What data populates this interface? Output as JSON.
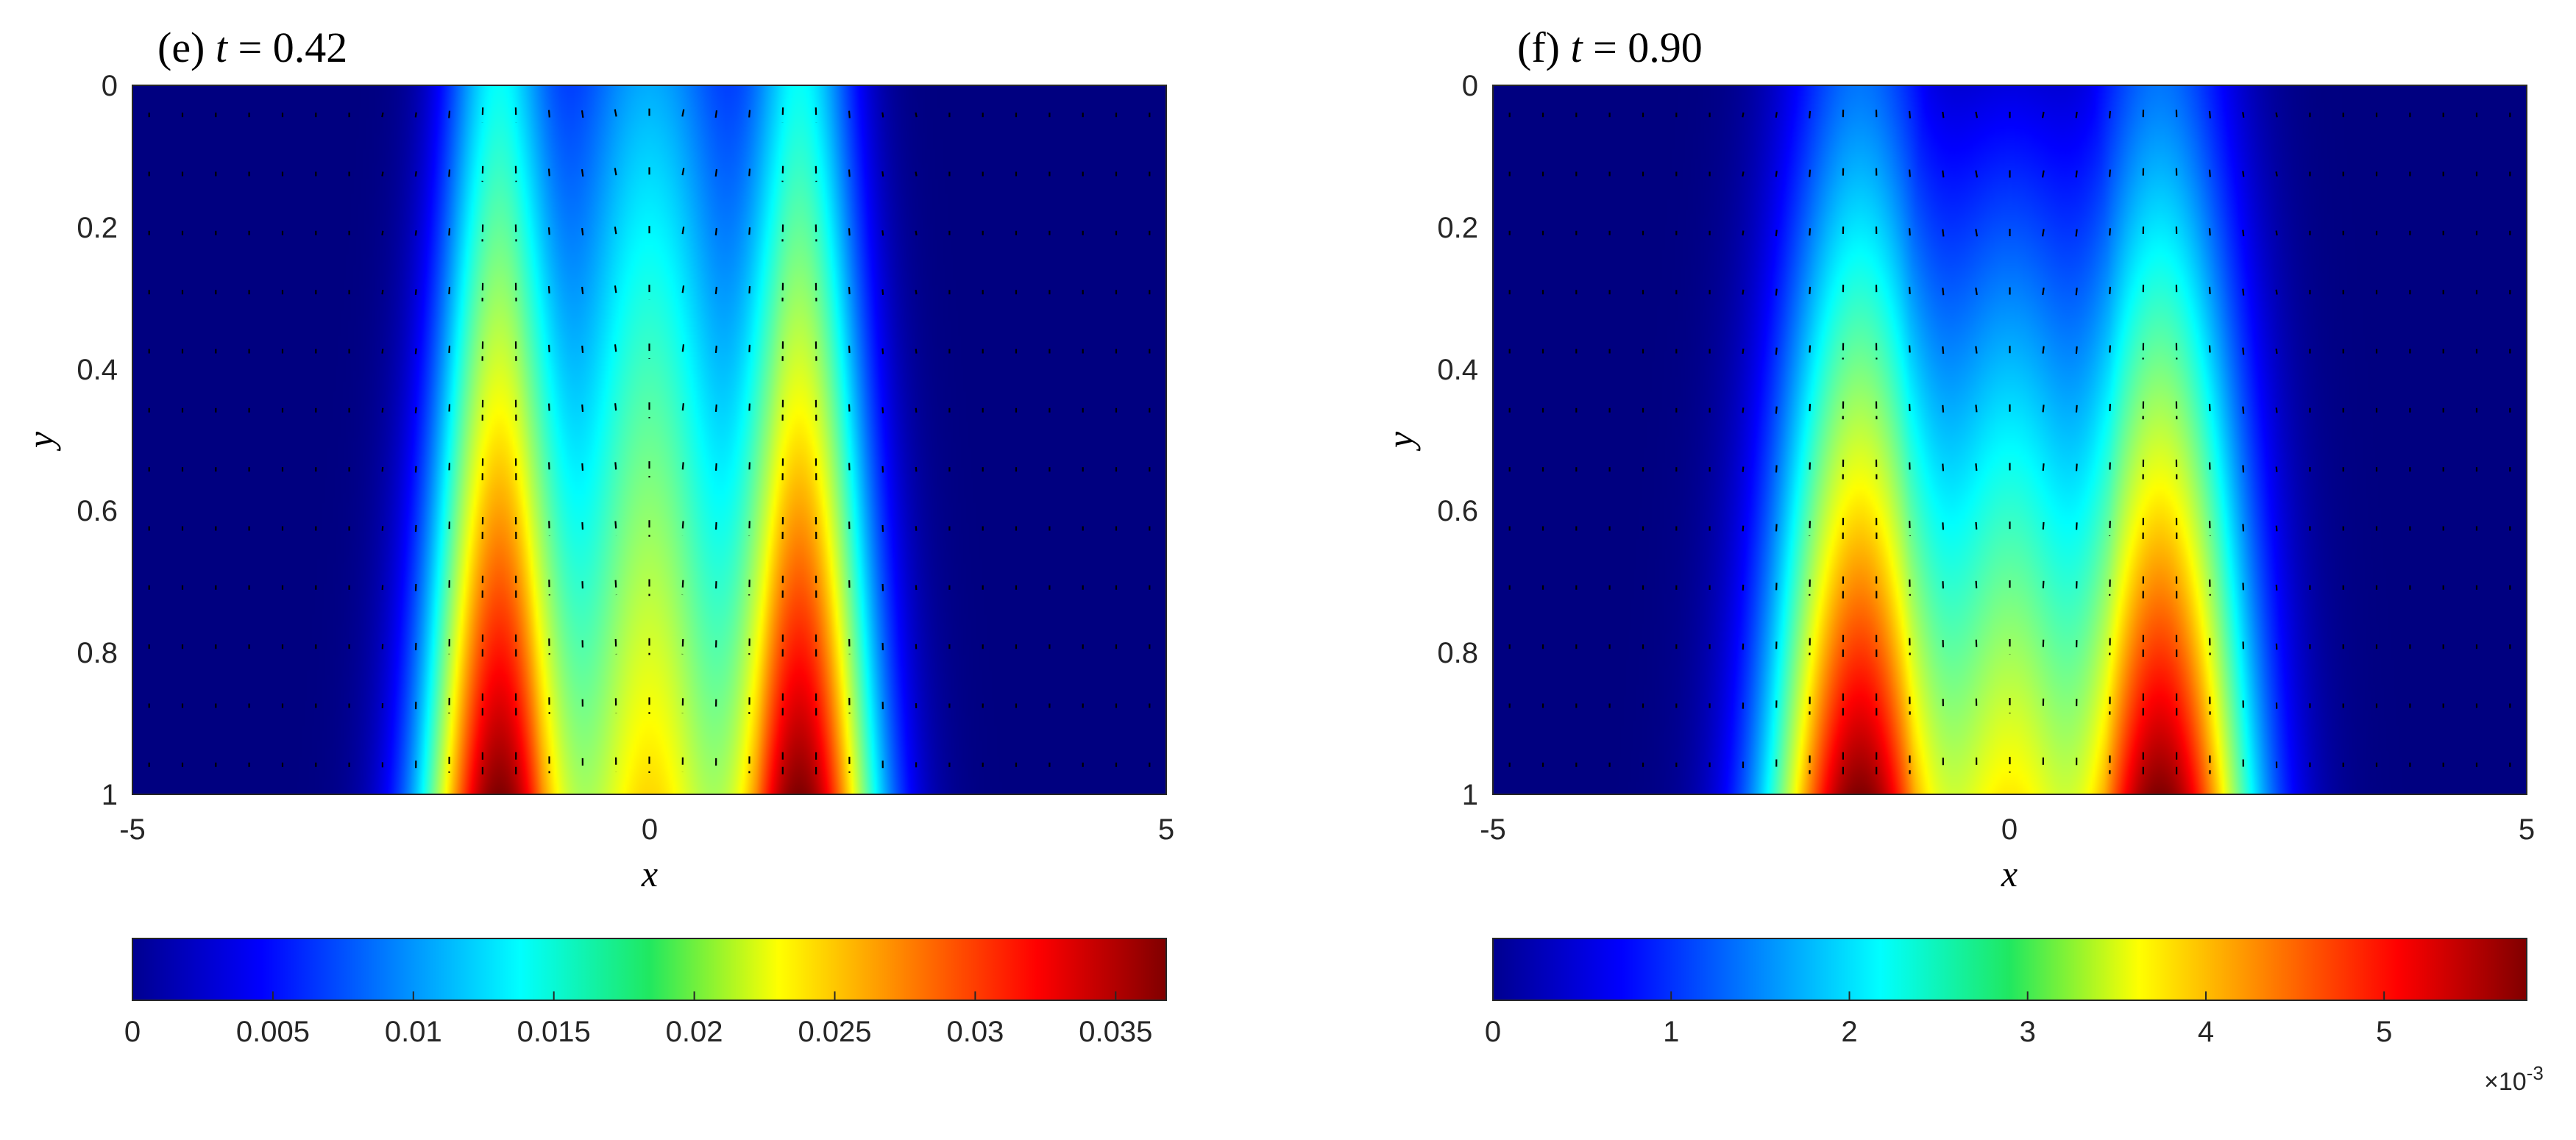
{
  "chart_data": [
    {
      "type": "heatmap",
      "panel_label": "(e)",
      "title_var": "t",
      "title_value": "= 0.42",
      "xlabel": "x",
      "ylabel": "y",
      "xlim": [
        -5,
        5
      ],
      "ylim": [
        0,
        1
      ],
      "y_reversed": true,
      "x_ticks": [
        "-5",
        "0",
        "5"
      ],
      "x_tick_values": [
        -5,
        0,
        5
      ],
      "y_ticks": [
        "0",
        "0.2",
        "0.4",
        "0.6",
        "0.8",
        "1"
      ],
      "y_tick_values": [
        0,
        0.2,
        0.4,
        0.6,
        0.8,
        1
      ],
      "colormap": "jet",
      "clim": [
        0,
        0.0368
      ],
      "colorbar_ticks": [
        "0",
        "0.005",
        "0.01",
        "0.015",
        "0.02",
        "0.025",
        "0.03",
        "0.035"
      ],
      "colorbar_tick_values": [
        0,
        0.005,
        0.01,
        0.015,
        0.02,
        0.025,
        0.03,
        0.035
      ],
      "colorbar_exponent": "",
      "field": {
        "peak_x": [
          -1.45,
          1.45
        ],
        "peak_value": 0.0368,
        "center_value_at_bottom": 0.027,
        "value_at_top_peaks": 0.014,
        "value_at_top_center": 0.012
      },
      "vector_field": "velocity quiver (dashed black arrows)"
    },
    {
      "type": "heatmap",
      "panel_label": "(f)",
      "title_var": "t",
      "title_value": "= 0.90",
      "xlabel": "x",
      "ylabel": "y",
      "xlim": [
        -5,
        5
      ],
      "ylim": [
        0,
        1
      ],
      "y_reversed": true,
      "x_ticks": [
        "-5",
        "0",
        "5"
      ],
      "x_tick_values": [
        -5,
        0,
        5
      ],
      "y_ticks": [
        "0",
        "0.2",
        "0.4",
        "0.6",
        "0.8",
        "1"
      ],
      "y_tick_values": [
        0,
        0.2,
        0.4,
        0.6,
        0.8,
        1
      ],
      "colormap": "jet",
      "clim": [
        0,
        5.8
      ],
      "colorbar_ticks": [
        "0",
        "1",
        "2",
        "3",
        "4",
        "5"
      ],
      "colorbar_tick_values": [
        0,
        1,
        2,
        3,
        4,
        5
      ],
      "colorbar_exponent": "-3",
      "colorbar_multiplier": "×10",
      "field": {
        "peak_x": [
          -1.45,
          1.45
        ],
        "peak_value": 5.8,
        "center_value_at_bottom": 4.1,
        "value_at_top_peaks": 1.4,
        "value_at_top_center": 0.6
      },
      "vector_field": "velocity quiver (dashed black arrows)"
    }
  ]
}
